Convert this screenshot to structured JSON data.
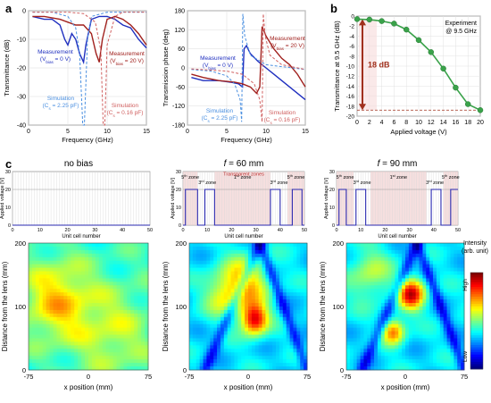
{
  "panel_labels": {
    "a": "a",
    "b": "b",
    "c": "c"
  },
  "colors": {
    "measurement0": "#1f2fbf",
    "measurement20": "#a0201d",
    "simulation0": "#4a8fe0",
    "simulation16": "#d06060",
    "experiment": "#3aa24a",
    "arrow": "#a0301d",
    "zone_fill": "#f2d2d2",
    "bias_line": "#2a2ab0"
  },
  "chart_data": [
    {
      "type": "line",
      "id": "a-left",
      "xlabel": "Frequency (GHz)",
      "ylabel": "Transmittance (dB)",
      "xlim": [
        0,
        15
      ],
      "ylim": [
        -40,
        0
      ],
      "xticks": [
        0,
        5,
        10,
        15
      ],
      "yticks": [
        0,
        -10,
        -20,
        -30,
        -40
      ],
      "series": [
        {
          "name": "Measurement (V_bias = 0 V)",
          "style": "solid",
          "color_key": "measurement0",
          "x": [
            0.5,
            2,
            3,
            4,
            4.6,
            5,
            5.5,
            6,
            6.5,
            7,
            7.3,
            8,
            9,
            10,
            11,
            12,
            13,
            14,
            15
          ],
          "y": [
            -2,
            -3,
            -3,
            -5,
            -10,
            -12,
            -8,
            -10,
            -15,
            -18,
            -12,
            -3,
            -2,
            -2,
            -3,
            -5,
            -6,
            -10,
            -13
          ]
        },
        {
          "name": "Measurement (V_bias = 20 V)",
          "style": "solid",
          "color_key": "measurement20",
          "x": [
            0.5,
            2,
            4,
            5,
            6,
            7,
            8,
            8.6,
            9,
            9.4,
            10,
            11,
            12,
            13,
            14,
            15
          ],
          "y": [
            -2,
            -2,
            -3,
            -4,
            -5,
            -5,
            -8,
            -15,
            -18,
            -10,
            -3,
            -2,
            -3,
            -5,
            -8,
            -12
          ]
        },
        {
          "name": "Simulation (C_s = 2.25 pF)",
          "style": "dashed",
          "color_key": "simulation0",
          "x": [
            0.5,
            3,
            5,
            6,
            6.5,
            6.9,
            7.1,
            7.5,
            8,
            10,
            12,
            15
          ],
          "y": [
            -0.5,
            -0.5,
            -2,
            -6,
            -15,
            -40,
            -40,
            -10,
            -2,
            -0.5,
            -0.5,
            -0.5
          ]
        },
        {
          "name": "Simulation (C_s = 0.16 pF)",
          "style": "dashed",
          "color_key": "simulation16",
          "x": [
            0.5,
            5,
            7,
            8.5,
            9.2,
            9.5,
            9.7,
            10,
            11,
            12,
            15
          ],
          "y": [
            -0.5,
            -0.5,
            -1,
            -4,
            -14,
            -40,
            -40,
            -12,
            -2,
            -0.5,
            -0.5
          ]
        }
      ],
      "annotations": {
        "m0": [
          "Measurement",
          "(V",
          "bias",
          " = 0 V)"
        ],
        "m20": [
          "Measurement",
          "(V",
          "bias",
          " = 20 V)"
        ],
        "s0": [
          "Simulation",
          "(C",
          "s",
          " = 2.25 pF)"
        ],
        "s16": [
          "Simulation",
          "(C",
          "s",
          " = 0.16 pF)"
        ]
      }
    },
    {
      "type": "line",
      "id": "a-right",
      "xlabel": "Frequency (GHz)",
      "ylabel": "Transmission phase (deg)",
      "xlim": [
        0,
        15
      ],
      "ylim": [
        -180,
        180
      ],
      "xticks": [
        0,
        5,
        10,
        15
      ],
      "yticks": [
        180,
        120,
        60,
        0,
        -60,
        -120,
        -180
      ],
      "series": [
        {
          "name": "Measurement (V_bias = 0 V)",
          "style": "solid",
          "color_key": "measurement0",
          "x": [
            0.5,
            2,
            4,
            5.5,
            6.5,
            7,
            7.2,
            7.5,
            8,
            9,
            10,
            11,
            12,
            13,
            14,
            15
          ],
          "y": [
            -30,
            -40,
            -40,
            -45,
            -50,
            -60,
            60,
            70,
            45,
            20,
            0,
            -20,
            -40,
            -60,
            -80,
            -100
          ]
        },
        {
          "name": "Measurement (V_bias = 20 V)",
          "style": "solid",
          "color_key": "measurement20",
          "x": [
            0.5,
            2,
            4,
            6,
            7,
            8,
            8.8,
            9.2,
            9.5,
            10,
            11,
            12,
            13,
            14,
            15
          ],
          "y": [
            -20,
            -30,
            -40,
            -45,
            -50,
            -60,
            -80,
            -60,
            130,
            100,
            60,
            30,
            10,
            -20,
            -60
          ]
        },
        {
          "name": "Simulation (C_s = 2.25 pF)",
          "style": "dashed",
          "color_key": "simulation0",
          "x": [
            0.5,
            3,
            5,
            6,
            6.7,
            6.9,
            7.05,
            7.3,
            8,
            10,
            15
          ],
          "y": [
            -5,
            -10,
            -25,
            -50,
            -100,
            -170,
            170,
            100,
            40,
            10,
            -5
          ]
        },
        {
          "name": "Simulation (C_s = 0.16 pF)",
          "style": "dashed",
          "color_key": "simulation16",
          "x": [
            0.5,
            5,
            7,
            8.5,
            9.2,
            9.5,
            9.65,
            9.9,
            10.5,
            12,
            15
          ],
          "y": [
            -3,
            -10,
            -20,
            -50,
            -100,
            -170,
            170,
            100,
            40,
            10,
            -5
          ]
        }
      ],
      "annotations": {
        "m0": [
          "Measurement",
          "(V",
          "bias",
          " = 0 V)"
        ],
        "m20": [
          "Measurement",
          "(V",
          "bias",
          " = 20 V)"
        ],
        "s0": [
          "Simulation",
          "(C",
          "s",
          " = 2.25 pF)"
        ],
        "s16": [
          "Simulation",
          "(C",
          "s",
          " = 0.16 pF)"
        ]
      }
    },
    {
      "type": "line",
      "id": "b",
      "xlabel": "Applied voltage (V)",
      "ylabel": "Transmittance at 9.5 GHz (dB)",
      "xlim": [
        0,
        20
      ],
      "ylim": [
        -20,
        0
      ],
      "xticks": [
        0,
        2,
        4,
        6,
        8,
        10,
        12,
        14,
        16,
        18,
        20
      ],
      "yticks": [
        0,
        -2,
        -4,
        -6,
        -8,
        -10,
        -12,
        -14,
        -16,
        -18,
        -20
      ],
      "legend": [
        "Experiment",
        "@ 9.5 GHz"
      ],
      "arrow_label": "18 dB",
      "series": [
        {
          "name": "Experiment @ 9.5 GHz",
          "x": [
            0,
            2,
            4,
            6,
            8,
            10,
            12,
            14,
            16,
            18,
            20
          ],
          "y": [
            -0.6,
            -0.7,
            -1.0,
            -1.5,
            -2.7,
            -4.8,
            -7.2,
            -10.5,
            -14.3,
            -17.6,
            -18.8
          ]
        }
      ]
    },
    {
      "type": "line",
      "id": "c-bias",
      "ylabel": "Applied voltage [V]",
      "xlabel": "Unit cell number",
      "ylim": [
        0,
        30
      ],
      "yticks": [
        0,
        10,
        20,
        30
      ],
      "xlim": [
        0,
        50
      ],
      "xticks": [
        0,
        10,
        20,
        30,
        40,
        50
      ],
      "cells": 50,
      "configs": [
        {
          "title": "no bias",
          "biased_cells": [],
          "zones": []
        },
        {
          "title": "f = 60 mm",
          "biased_cells": [
            1,
            2,
            3,
            4,
            5,
            9,
            10,
            11,
            12,
            36,
            37,
            38,
            39,
            45,
            46,
            47,
            48
          ],
          "zones": [
            {
              "from": 0,
              "to": 6,
              "label": "5th zone"
            },
            {
              "from": 7,
              "to": 13,
              "label": "3rd zone"
            },
            {
              "from": 13,
              "to": 36,
              "label": "1st zone"
            },
            {
              "from": 36,
              "to": 43,
              "label": "3rd zone"
            },
            {
              "from": 43,
              "to": 50,
              "label": "5th zone"
            }
          ],
          "transparent_label": "Transparent zones"
        },
        {
          "title": "f = 90 mm",
          "biased_cells": [
            1,
            2,
            3,
            8,
            9,
            10,
            11,
            39,
            40,
            41,
            42,
            47,
            48,
            49
          ],
          "zones": [
            {
              "from": 0,
              "to": 7,
              "label": "5th zone"
            },
            {
              "from": 7,
              "to": 14,
              "label": "3rd zone"
            },
            {
              "from": 14,
              "to": 37,
              "label": "1st zone"
            },
            {
              "from": 37,
              "to": 44,
              "label": "3rd zone"
            },
            {
              "from": 44,
              "to": 50,
              "label": "5th zone"
            }
          ]
        }
      ]
    },
    {
      "type": "heatmap",
      "id": "c-maps",
      "xlabel": "x position (mm)",
      "ylabel": "Distance from the lens (mm)",
      "xlim": [
        -75,
        75
      ],
      "ylim": [
        0,
        200
      ],
      "xticks": [
        -75,
        0,
        75
      ],
      "yticks": [
        0,
        100,
        200
      ],
      "colorbar": {
        "title": "Intensity",
        "subtitle": "(arb. unit)",
        "high": "High",
        "low": "Low"
      },
      "maps": [
        {
          "id": "nobias",
          "blobs": [
            {
              "x": -40,
              "y": 110,
              "s": 30,
              "a": 0.25
            },
            {
              "x": 30,
              "y": 60,
              "s": 35,
              "a": 0.15
            }
          ],
          "base": 0.42
        },
        {
          "id": "f60",
          "blobs": [
            {
              "x": 8,
              "y": 80,
              "s": 12,
              "a": 0.55
            },
            {
              "x": 0,
              "y": 140,
              "s": 20,
              "a": 0.3
            },
            {
              "x": -30,
              "y": 120,
              "s": 18,
              "a": 0.25
            }
          ],
          "base": 0.35
        },
        {
          "id": "f90",
          "blobs": [
            {
              "x": 8,
              "y": 120,
              "s": 12,
              "a": 0.55
            },
            {
              "x": -15,
              "y": 60,
              "s": 10,
              "a": 0.4
            },
            {
              "x": -45,
              "y": 150,
              "s": 20,
              "a": 0.2
            }
          ],
          "base": 0.35
        }
      ]
    }
  ]
}
